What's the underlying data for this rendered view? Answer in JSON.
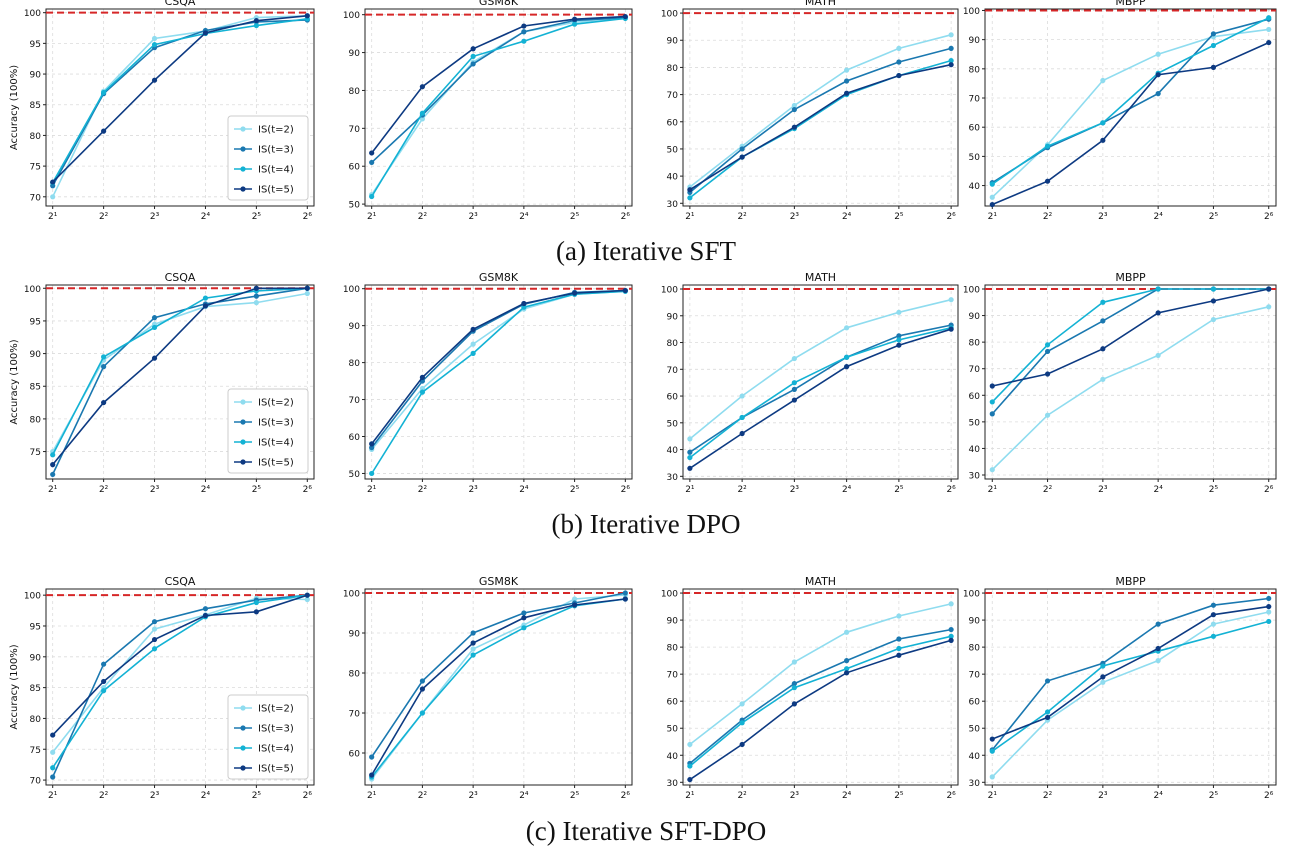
{
  "rows": [
    {
      "caption": "(a) Iterative SFT"
    },
    {
      "caption": "(b) Iterative DPO"
    },
    {
      "caption": "(c) Iterative SFT-DPO"
    }
  ],
  "ylabel": "Accuracy (100%)",
  "x_tick_labels": [
    "2¹",
    "2²",
    "2³",
    "2⁴",
    "2⁵",
    "2⁶"
  ],
  "legend": [
    "IS(t=2)",
    "IS(t=3)",
    "IS(t=4)",
    "IS(t=5)"
  ],
  "colors": {
    "t2": "#8fdcef",
    "t3": "#1a78b0",
    "t4": "#13b2d4",
    "t5": "#0d3a82",
    "reference": "#d62728"
  },
  "reference_line_y": 100,
  "chart_data": [
    {
      "type": "line",
      "row": 0,
      "title": "CSQA",
      "ylim": [
        68.5,
        100.6
      ],
      "yticks": [
        70,
        75,
        80,
        85,
        90,
        95,
        100
      ],
      "x": [
        2,
        4,
        8,
        16,
        32,
        64
      ],
      "xscale": "log2",
      "grid": true,
      "legend_position": "lower-right",
      "series": [
        {
          "name": "IS(t=2)",
          "values": [
            70,
            87.2,
            95.8,
            97.0,
            99.2,
            99.5
          ]
        },
        {
          "name": "IS(t=3)",
          "values": [
            71.8,
            86.8,
            94.3,
            97.1,
            98.5,
            98.8
          ]
        },
        {
          "name": "IS(t=4)",
          "values": [
            72.3,
            87.0,
            94.8,
            96.6,
            97.9,
            99.0
          ]
        },
        {
          "name": "IS(t=5)",
          "values": [
            72.4,
            80.7,
            89.0,
            96.7,
            98.7,
            99.5
          ]
        }
      ]
    },
    {
      "type": "line",
      "row": 0,
      "title": "GSM8K",
      "ylim": [
        49.5,
        101.5
      ],
      "yticks": [
        50,
        60,
        70,
        80,
        90,
        100
      ],
      "x": [
        2,
        4,
        8,
        16,
        32,
        64
      ],
      "xscale": "log2",
      "grid": true,
      "series": [
        {
          "name": "IS(t=2)",
          "values": [
            52.5,
            72.5,
            87.5,
            95.5,
            98.0,
            99.2
          ]
        },
        {
          "name": "IS(t=3)",
          "values": [
            61.0,
            73.5,
            87.0,
            95.5,
            98.5,
            99.2
          ]
        },
        {
          "name": "IS(t=4)",
          "values": [
            52.0,
            74.0,
            89.0,
            93.0,
            97.5,
            99.0
          ]
        },
        {
          "name": "IS(t=5)",
          "values": [
            63.5,
            81.0,
            91.0,
            97.0,
            98.8,
            99.5
          ]
        }
      ]
    },
    {
      "type": "line",
      "row": 0,
      "title": "MATH",
      "ylim": [
        29.0,
        101.5
      ],
      "yticks": [
        30,
        40,
        50,
        60,
        70,
        80,
        90,
        100
      ],
      "x": [
        2,
        4,
        8,
        16,
        32,
        64
      ],
      "xscale": "log2",
      "grid": true,
      "series": [
        {
          "name": "IS(t=2)",
          "values": [
            36,
            51,
            66,
            79,
            87,
            92
          ]
        },
        {
          "name": "IS(t=3)",
          "values": [
            34,
            50,
            64.5,
            75,
            82,
            87
          ]
        },
        {
          "name": "IS(t=4)",
          "values": [
            32,
            47,
            57.5,
            70,
            77,
            82.5
          ]
        },
        {
          "name": "IS(t=5)",
          "values": [
            35,
            47,
            58,
            70.5,
            77,
            81
          ]
        }
      ]
    },
    {
      "type": "line",
      "row": 0,
      "title": "MBPP",
      "ylim": [
        33.0,
        100.5
      ],
      "yticks": [
        40,
        50,
        60,
        70,
        80,
        90,
        100
      ],
      "x": [
        2,
        4,
        8,
        16,
        32,
        64
      ],
      "xscale": "log2",
      "grid": true,
      "series": [
        {
          "name": "IS(t=2)",
          "values": [
            36,
            54,
            76,
            85,
            91,
            93.5
          ]
        },
        {
          "name": "IS(t=3)",
          "values": [
            41,
            53,
            61.5,
            71.5,
            92,
            97
          ]
        },
        {
          "name": "IS(t=4)",
          "values": [
            40.5,
            53.5,
            61.5,
            78.5,
            88,
            97.5
          ]
        },
        {
          "name": "IS(t=5)",
          "values": [
            33.5,
            41.5,
            55.5,
            78,
            80.5,
            89
          ]
        }
      ]
    },
    {
      "type": "line",
      "row": 1,
      "title": "CSQA",
      "ylim": [
        70.8,
        100.5
      ],
      "yticks": [
        75,
        80,
        85,
        90,
        95,
        100
      ],
      "x": [
        2,
        4,
        8,
        16,
        32,
        64
      ],
      "xscale": "log2",
      "grid": true,
      "legend_position": "lower-right",
      "series": [
        {
          "name": "IS(t=2)",
          "values": [
            75,
            89,
            94.5,
            97.2,
            97.8,
            99.2
          ]
        },
        {
          "name": "IS(t=3)",
          "values": [
            71.5,
            88,
            95.5,
            97.6,
            98.8,
            100
          ]
        },
        {
          "name": "IS(t=4)",
          "values": [
            74.5,
            89.5,
            94,
            98.5,
            99.6,
            100
          ]
        },
        {
          "name": "IS(t=5)",
          "values": [
            73,
            82.5,
            89.3,
            97.3,
            100,
            100
          ]
        }
      ]
    },
    {
      "type": "line",
      "row": 1,
      "title": "GSM8K",
      "ylim": [
        48.5,
        101.0
      ],
      "yticks": [
        50,
        60,
        70,
        80,
        90,
        100
      ],
      "x": [
        2,
        4,
        8,
        16,
        32,
        64
      ],
      "xscale": "log2",
      "grid": true,
      "series": [
        {
          "name": "IS(t=2)",
          "values": [
            56.5,
            73,
            85,
            94.5,
            98.5,
            99.3
          ]
        },
        {
          "name": "IS(t=3)",
          "values": [
            57,
            75,
            88.5,
            95.8,
            99,
            99.5
          ]
        },
        {
          "name": "IS(t=4)",
          "values": [
            50,
            72,
            82.5,
            95,
            98.5,
            99.3
          ]
        },
        {
          "name": "IS(t=5)",
          "values": [
            58,
            76,
            89,
            96,
            98.8,
            99.5
          ]
        }
      ]
    },
    {
      "type": "line",
      "row": 1,
      "title": "MATH",
      "ylim": [
        29.0,
        101.5
      ],
      "yticks": [
        30,
        40,
        50,
        60,
        70,
        80,
        90,
        100
      ],
      "x": [
        2,
        4,
        8,
        16,
        32,
        64
      ],
      "xscale": "log2",
      "grid": true,
      "series": [
        {
          "name": "IS(t=2)",
          "values": [
            44,
            60,
            74,
            85.5,
            91.3,
            96
          ]
        },
        {
          "name": "IS(t=3)",
          "values": [
            39,
            52,
            62.5,
            74.5,
            82.5,
            86.5
          ]
        },
        {
          "name": "IS(t=4)",
          "values": [
            37,
            52,
            65,
            74.5,
            81,
            85.5
          ]
        },
        {
          "name": "IS(t=5)",
          "values": [
            33,
            46,
            58.5,
            71,
            79,
            85
          ]
        }
      ]
    },
    {
      "type": "line",
      "row": 1,
      "title": "MBPP",
      "ylim": [
        28.5,
        101.5
      ],
      "yticks": [
        30,
        40,
        50,
        60,
        70,
        80,
        90,
        100
      ],
      "x": [
        2,
        4,
        8,
        16,
        32,
        64
      ],
      "xscale": "log2",
      "grid": true,
      "series": [
        {
          "name": "IS(t=2)",
          "values": [
            32,
            52.5,
            66,
            75,
            88.5,
            93.3
          ]
        },
        {
          "name": "IS(t=3)",
          "values": [
            53,
            76.5,
            88,
            100,
            100,
            100
          ]
        },
        {
          "name": "IS(t=4)",
          "values": [
            57.5,
            79,
            95,
            100,
            100,
            100
          ]
        },
        {
          "name": "IS(t=5)",
          "values": [
            63.5,
            68,
            77.5,
            91,
            95.5,
            100
          ]
        }
      ]
    },
    {
      "type": "line",
      "row": 2,
      "title": "CSQA",
      "ylim": [
        69.2,
        101.0
      ],
      "yticks": [
        70,
        75,
        80,
        85,
        90,
        95,
        100
      ],
      "x": [
        2,
        4,
        8,
        16,
        32,
        64
      ],
      "xscale": "log2",
      "grid": true,
      "legend_position": "lower-right",
      "series": [
        {
          "name": "IS(t=2)",
          "values": [
            74.5,
            85,
            94.5,
            96.8,
            99.5,
            99.3
          ]
        },
        {
          "name": "IS(t=3)",
          "values": [
            70.5,
            88.8,
            95.7,
            97.8,
            99.2,
            100
          ]
        },
        {
          "name": "IS(t=4)",
          "values": [
            72,
            84.5,
            91.3,
            96.5,
            98.8,
            100
          ]
        },
        {
          "name": "IS(t=5)",
          "values": [
            77.3,
            86,
            92.8,
            96.7,
            97.3,
            100
          ]
        }
      ]
    },
    {
      "type": "line",
      "row": 2,
      "title": "GSM8K",
      "ylim": [
        52.0,
        101.0
      ],
      "yticks": [
        60,
        70,
        80,
        90,
        100
      ],
      "x": [
        2,
        4,
        8,
        16,
        32,
        64
      ],
      "xscale": "log2",
      "grid": true,
      "series": [
        {
          "name": "IS(t=2)",
          "values": [
            53.5,
            70,
            86,
            92,
            98.5,
            99.5
          ]
        },
        {
          "name": "IS(t=3)",
          "values": [
            59,
            78,
            90,
            95,
            97.5,
            100
          ]
        },
        {
          "name": "IS(t=4)",
          "values": [
            54,
            70,
            84.5,
            91.3,
            96.8,
            98.5
          ]
        },
        {
          "name": "IS(t=5)",
          "values": [
            54.5,
            76,
            87.5,
            93.8,
            97,
            98.5
          ]
        }
      ]
    },
    {
      "type": "line",
      "row": 2,
      "title": "MATH",
      "ylim": [
        29.0,
        101.5
      ],
      "yticks": [
        30,
        40,
        50,
        60,
        70,
        80,
        90,
        100
      ],
      "x": [
        2,
        4,
        8,
        16,
        32,
        64
      ],
      "xscale": "log2",
      "grid": true,
      "series": [
        {
          "name": "IS(t=2)",
          "values": [
            44,
            59,
            74.5,
            85.5,
            91.5,
            96
          ]
        },
        {
          "name": "IS(t=3)",
          "values": [
            37,
            53,
            66.5,
            75,
            83,
            86.5
          ]
        },
        {
          "name": "IS(t=4)",
          "values": [
            36,
            52,
            65,
            72,
            79.5,
            84
          ]
        },
        {
          "name": "IS(t=5)",
          "values": [
            31,
            44,
            59,
            70.5,
            77,
            82.5
          ]
        }
      ]
    },
    {
      "type": "line",
      "row": 2,
      "title": "MBPP",
      "ylim": [
        29.0,
        101.5
      ],
      "yticks": [
        30,
        40,
        50,
        60,
        70,
        80,
        90,
        100
      ],
      "x": [
        2,
        4,
        8,
        16,
        32,
        64
      ],
      "xscale": "log2",
      "grid": true,
      "series": [
        {
          "name": "IS(t=2)",
          "values": [
            32,
            53,
            67,
            75,
            88.5,
            93
          ]
        },
        {
          "name": "IS(t=3)",
          "values": [
            42,
            67.5,
            74,
            88.5,
            95.5,
            98
          ]
        },
        {
          "name": "IS(t=4)",
          "values": [
            41.5,
            56,
            73,
            78.5,
            84,
            89.5
          ]
        },
        {
          "name": "IS(t=5)",
          "values": [
            46,
            54,
            69,
            79.5,
            92,
            95
          ]
        }
      ]
    }
  ]
}
